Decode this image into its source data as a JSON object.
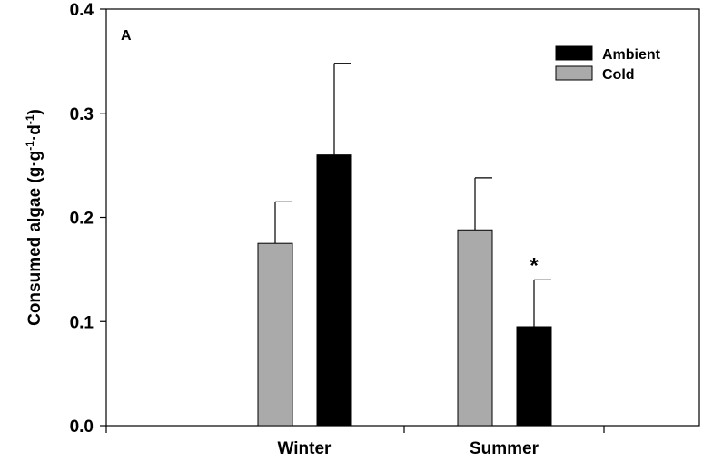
{
  "chart_data": {
    "type": "bar",
    "panel_label": "A",
    "ylabel": {
      "base": "Consumed algae (g·g",
      "sup1": "-1",
      "mid": "·d",
      "sup2": "-1",
      "end": ")"
    },
    "xlabel": "",
    "ylim": [
      0,
      0.4
    ],
    "yticks": [
      "0.0",
      "0.1",
      "0.2",
      "0.3",
      "0.4"
    ],
    "ytick_values": [
      0,
      0.1,
      0.2,
      0.3,
      0.4
    ],
    "categories": [
      "Winter",
      "Summer"
    ],
    "series": [
      {
        "name": "Cold",
        "color": "#aaaaaa",
        "values": [
          0.175,
          0.188
        ],
        "errors": [
          0.04,
          0.05
        ]
      },
      {
        "name": "Ambient",
        "color": "#000000",
        "values": [
          0.26,
          0.095
        ],
        "errors": [
          0.088,
          0.045
        ]
      }
    ],
    "annotations": [
      {
        "category": "Summer",
        "series": "Ambient",
        "text": "*"
      }
    ],
    "legend": {
      "position": "top-right",
      "order": [
        "Ambient",
        "Cold"
      ]
    },
    "grid": false
  }
}
